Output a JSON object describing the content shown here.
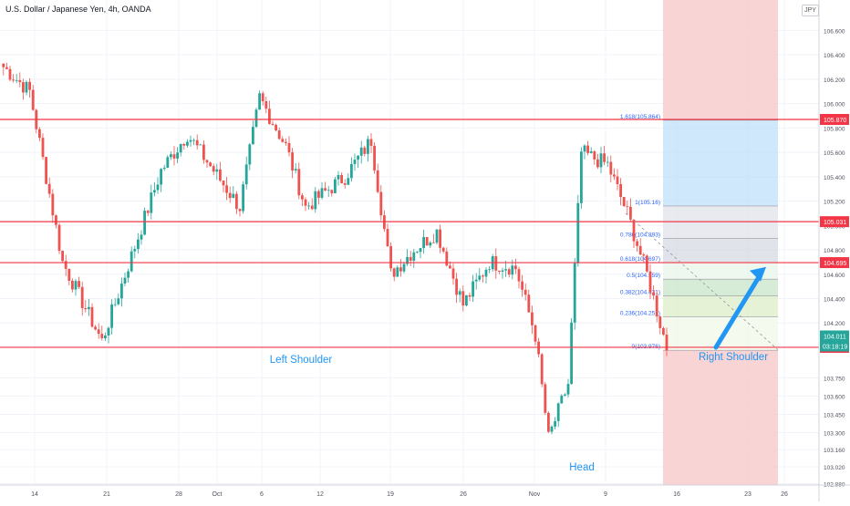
{
  "title": "U.S. Dollar / Japanese Yen, 4h, OANDA",
  "currency_badge": "JPY",
  "colors": {
    "up": "#26a69a",
    "down": "#ef5350",
    "level_line": "#f23645",
    "annotation_text": "#2196f3",
    "arrow": "#2196f3",
    "target_zone": "#bbdefb",
    "stop_zone": "#f8c9c9",
    "current_price_bg": "#26a69a",
    "countdown_bg": "#26a69a",
    "level_label_bg": "#f23645"
  },
  "chart_data": {
    "type": "candlestick",
    "x_ticks": [
      "14",
      "21",
      "28",
      "Oct",
      "6",
      "12",
      "19",
      "26",
      "Nov",
      "9",
      "16",
      "23",
      "26"
    ],
    "y_ticks": [
      "106.600",
      "106.400",
      "106.200",
      "106.000",
      "105.800",
      "105.600",
      "105.400",
      "105.200",
      "105.000",
      "104.800",
      "104.600",
      "104.400",
      "104.200",
      "104.000",
      "103.750",
      "103.600",
      "103.450",
      "103.300",
      "103.160",
      "103.020",
      "102.880"
    ],
    "ylim": [
      102.87,
      106.85
    ],
    "horizontal_levels": [
      105.87,
      105.031,
      104.695,
      104.0
    ],
    "level_labels": [
      "105.870",
      "105.031",
      "104.695",
      "104.000"
    ],
    "current_price": "104.011",
    "countdown": "03:18:19",
    "fib_levels": [
      {
        "label": "1.618(105.864)",
        "price": 105.864
      },
      {
        "label": "1(105.16)",
        "price": 105.16
      },
      {
        "label": "0.786(104.893)",
        "price": 104.893
      },
      {
        "label": "0.618(104.697)",
        "price": 104.697
      },
      {
        "label": "0.5(104.559)",
        "price": 104.559
      },
      {
        "label": "0.382(104.421)",
        "price": 104.421
      },
      {
        "label": "0.236(104.251)",
        "price": 104.251
      },
      {
        "label": "0(103.976)",
        "price": 103.976
      }
    ],
    "annotations": [
      "Left Shoulder",
      "Head",
      "Right Shoulder"
    ],
    "key_points": [
      {
        "x_index": 0,
        "price": 106.3
      },
      {
        "x_index": 8,
        "price": 106.1
      },
      {
        "x_index": 18,
        "price": 104.7
      },
      {
        "x_index": 30,
        "price": 104.05
      },
      {
        "x_index": 48,
        "price": 105.45
      },
      {
        "x_index": 56,
        "price": 105.75
      },
      {
        "x_index": 72,
        "price": 105.15
      },
      {
        "x_index": 78,
        "price": 106.05
      },
      {
        "x_index": 86,
        "price": 105.65
      },
      {
        "x_index": 92,
        "price": 105.15
      },
      {
        "x_index": 104,
        "price": 105.4
      },
      {
        "x_index": 112,
        "price": 105.7
      },
      {
        "x_index": 118,
        "price": 104.6
      },
      {
        "x_index": 125,
        "price": 104.8
      },
      {
        "x_index": 132,
        "price": 104.95
      },
      {
        "x_index": 140,
        "price": 104.35
      },
      {
        "x_index": 148,
        "price": 104.7
      },
      {
        "x_index": 156,
        "price": 104.65
      },
      {
        "x_index": 162,
        "price": 104.1
      },
      {
        "x_index": 166,
        "price": 103.25
      },
      {
        "x_index": 172,
        "price": 103.7
      },
      {
        "x_index": 176,
        "price": 105.6
      },
      {
        "x_index": 184,
        "price": 105.5
      },
      {
        "x_index": 190,
        "price": 105.1
      },
      {
        "x_index": 196,
        "price": 104.6
      },
      {
        "x_index": 202,
        "price": 104.0
      }
    ]
  }
}
